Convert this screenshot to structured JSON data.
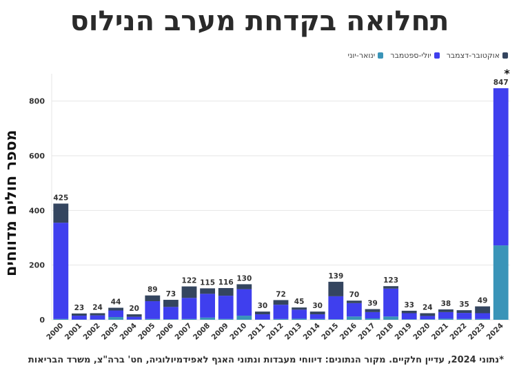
{
  "title": "תחלואה בקדחת מערב הנילוס",
  "legend": [
    {
      "label": "אוקטובר-דצמבר",
      "color": "#34455f"
    },
    {
      "label": "יולי-ספטמבר",
      "color": "#3f3fee"
    },
    {
      "label": "ינואר-יוני",
      "color": "#3a94b8"
    }
  ],
  "footnote": "*נתוני 2024, עדיין חלקיים. מקור הנתונים: דיווחי מעבדות ונתוני האגף לאפידמיולוגיה, חט' ברה\"צ, משרד הבריאות",
  "chart_data": {
    "type": "bar",
    "stacked": true,
    "title": "תחלואה בקדחת מערב הנילוס",
    "ylabel": "מספר חולים מדווחים",
    "xlabel": "",
    "ylim": [
      0,
      900
    ],
    "yticks": [
      0,
      200,
      400,
      600,
      800
    ],
    "grid": true,
    "legend_position": "top-right",
    "categories": [
      "2000",
      "2001",
      "2002",
      "2003",
      "2004",
      "2005",
      "2006",
      "2007",
      "2008",
      "2009",
      "2010",
      "2011",
      "2012",
      "2013",
      "2014",
      "2015",
      "2016",
      "2017",
      "2018",
      "2019",
      "2020",
      "2021",
      "2022",
      "2023",
      "2024"
    ],
    "series": [
      {
        "name": "ינואר-יוני",
        "color": "#3a94b8",
        "values": [
          3,
          1,
          1,
          10,
          1,
          3,
          2,
          3,
          8,
          3,
          15,
          1,
          3,
          4,
          3,
          2,
          12,
          5,
          12,
          2,
          2,
          4,
          3,
          3,
          272
        ]
      },
      {
        "name": "יולי-ספטמבר",
        "color": "#3f3fee",
        "values": [
          352,
          14,
          15,
          24,
          10,
          65,
          45,
          77,
          87,
          85,
          97,
          19,
          52,
          33,
          17,
          84,
          49,
          23,
          102,
          22,
          12,
          24,
          22,
          21,
          575
        ]
      },
      {
        "name": "אוקטובר-דצמבר",
        "color": "#34455f",
        "values": [
          70,
          8,
          8,
          10,
          9,
          21,
          26,
          42,
          20,
          28,
          18,
          10,
          17,
          8,
          10,
          53,
          9,
          11,
          9,
          9,
          10,
          10,
          10,
          25,
          0
        ]
      }
    ],
    "totals": [
      "425",
      "23",
      "24",
      "44",
      "20",
      "89",
      "73",
      "122",
      "115",
      "116",
      "130",
      "30",
      "72",
      "45",
      "30",
      "139",
      "70",
      "39",
      "123",
      "33",
      "24",
      "38",
      "35",
      "49",
      "847"
    ],
    "annotations": [
      {
        "category": "2024",
        "text": "*"
      }
    ]
  }
}
